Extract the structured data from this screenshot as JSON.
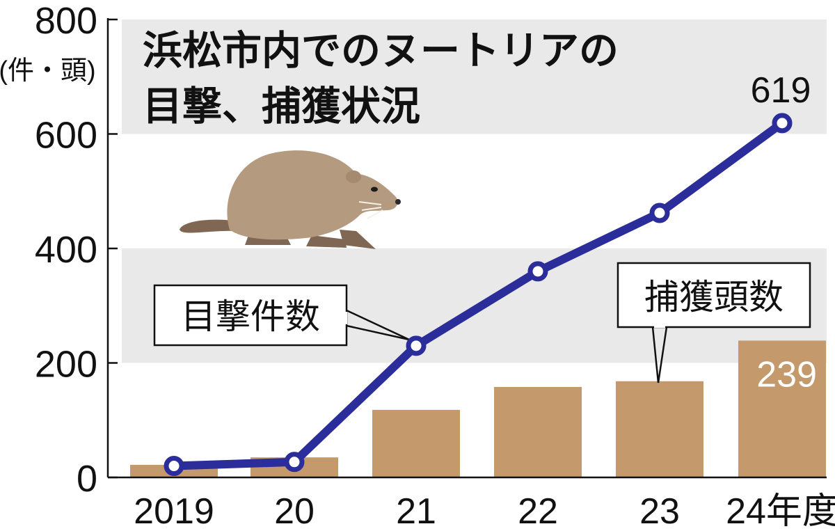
{
  "colors": {
    "band": "#e9e9e9",
    "bar": "#c4996b",
    "line": "#2b2d9a",
    "axis": "#111111",
    "bar_label": "#ffffff"
  },
  "chart_data": {
    "type": "bar+line",
    "title_line1": "浜松市内でのヌートリアの",
    "title_line2": "目撃、捕獲状況",
    "ylabel": "(件・頭)",
    "ylim": [
      0,
      800
    ],
    "yticks": [
      "0",
      "200",
      "400",
      "600",
      "800"
    ],
    "categories": [
      "2019",
      "20",
      "21",
      "22",
      "23",
      "24年度"
    ],
    "series": [
      {
        "name": "捕獲頭数",
        "kind": "bar",
        "values": [
          22,
          35,
          118,
          158,
          168,
          239
        ],
        "labels": [
          "",
          "",
          "",
          "",
          "",
          "239"
        ]
      },
      {
        "name": "目撃件数",
        "kind": "line",
        "values": [
          20,
          27,
          230,
          360,
          462,
          619
        ],
        "labels": [
          "",
          "",
          "",
          "",
          "",
          "619"
        ]
      }
    ],
    "icon": "nutria-illustration"
  }
}
